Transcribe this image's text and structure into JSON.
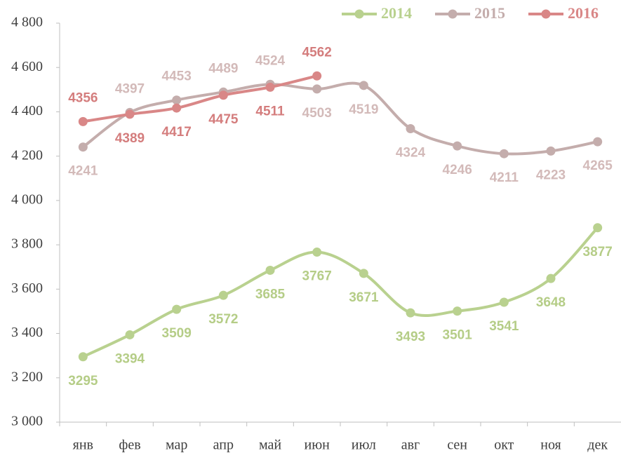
{
  "chart_data": {
    "type": "line",
    "categories": [
      "янв",
      "фев",
      "мар",
      "апр",
      "май",
      "июн",
      "июл",
      "авг",
      "сен",
      "окт",
      "ноя",
      "дек"
    ],
    "series": [
      {
        "name": "2014",
        "color": "#b9d18f",
        "values": [
          3295,
          3394,
          3509,
          3572,
          3685,
          3767,
          3671,
          3493,
          3501,
          3541,
          3648,
          3877
        ]
      },
      {
        "name": "2015",
        "color": "#c4adac",
        "values": [
          4241,
          4397,
          4453,
          4489,
          4524,
          4503,
          4519,
          4324,
          4246,
          4211,
          4223,
          4265
        ]
      },
      {
        "name": "2016",
        "color": "#d98787",
        "values": [
          4356,
          4389,
          4417,
          4475,
          4511,
          4562,
          null,
          null,
          null,
          null,
          null,
          null
        ]
      }
    ],
    "ylim": [
      3000,
      4800
    ],
    "yticks": [
      {
        "value": 3000,
        "label": "3 000"
      },
      {
        "value": 3200,
        "label": "3 200"
      },
      {
        "value": 3400,
        "label": "3 400"
      },
      {
        "value": 3600,
        "label": "3 600"
      },
      {
        "value": 3800,
        "label": "3 800"
      },
      {
        "value": 4000,
        "label": "4 000"
      },
      {
        "value": 4200,
        "label": "4 200"
      },
      {
        "value": 4400,
        "label": "4 400"
      },
      {
        "value": 4600,
        "label": "4 600"
      },
      {
        "value": 4800,
        "label": "4 800"
      }
    ],
    "legend": "top-right",
    "grid": false
  }
}
